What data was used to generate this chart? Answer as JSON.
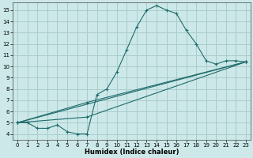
{
  "xlabel": "Humidex (Indice chaleur)",
  "background_color": "#cce8e8",
  "grid_color": "#aacccc",
  "line_color": "#1f6b6b",
  "xlim": [
    -0.5,
    23.5
  ],
  "ylim": [
    3.5,
    15.7
  ],
  "xticks": [
    0,
    1,
    2,
    3,
    4,
    5,
    6,
    7,
    8,
    9,
    10,
    11,
    12,
    13,
    14,
    15,
    16,
    17,
    18,
    19,
    20,
    21,
    22,
    23
  ],
  "yticks": [
    4,
    5,
    6,
    7,
    8,
    9,
    10,
    11,
    12,
    13,
    14,
    15
  ],
  "curve1_x": [
    0,
    1,
    2,
    3,
    4,
    5,
    6,
    7,
    8,
    9,
    10,
    11,
    12,
    13,
    14,
    15,
    16,
    17,
    18,
    19,
    20,
    21,
    22,
    23
  ],
  "curve1_y": [
    5.0,
    5.0,
    4.5,
    4.5,
    4.8,
    4.2,
    4.0,
    4.0,
    7.5,
    8.0,
    9.5,
    11.5,
    13.5,
    15.0,
    15.4,
    15.0,
    14.7,
    13.2,
    12.0,
    10.5,
    10.2,
    10.5,
    10.5,
    10.4
  ],
  "curve2_x": [
    0,
    23
  ],
  "curve2_y": [
    5.0,
    10.4
  ],
  "curve3_x": [
    0,
    7,
    23
  ],
  "curve3_y": [
    5.0,
    5.5,
    10.4
  ],
  "curve4_x": [
    0,
    7,
    23
  ],
  "curve4_y": [
    5.0,
    6.8,
    10.4
  ]
}
